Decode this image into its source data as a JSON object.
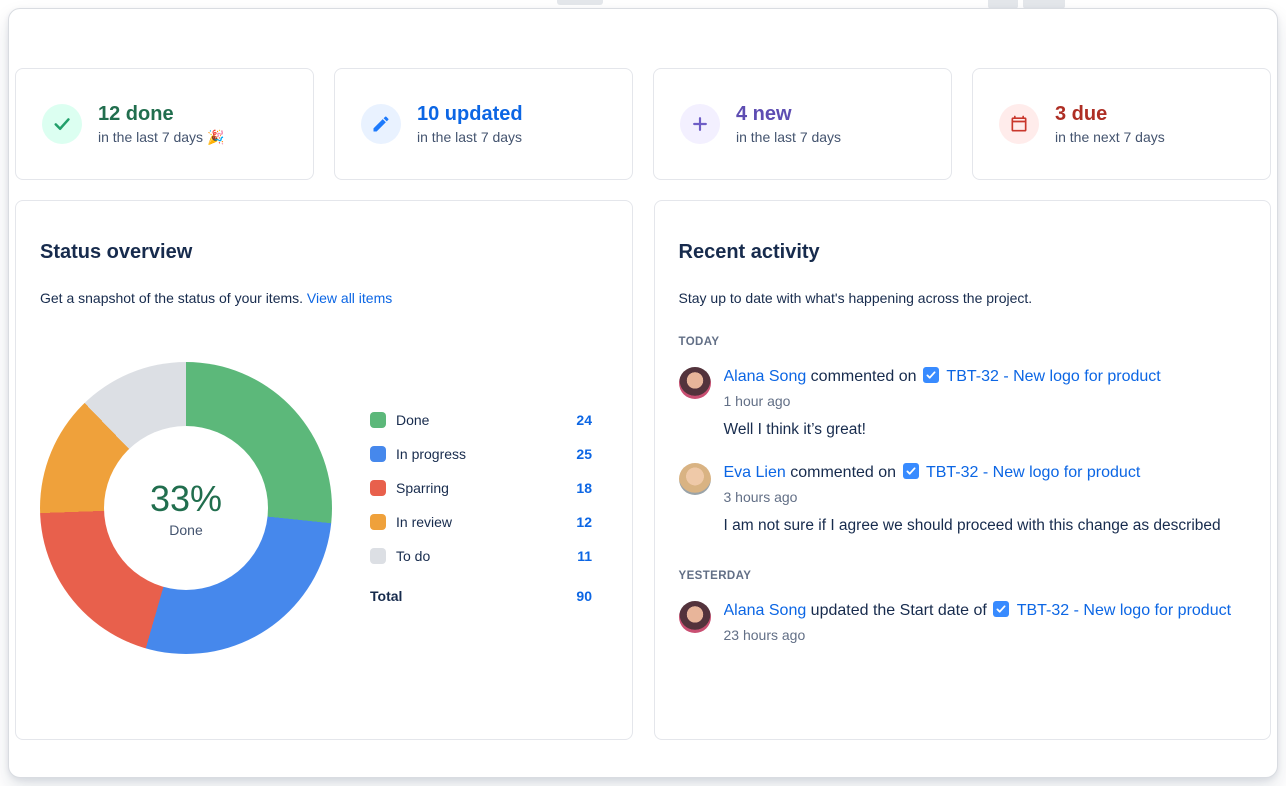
{
  "colors": {
    "link": "#0C66E4",
    "task_icon": "#388BFF",
    "legend_value": "#0C66E4",
    "center_text": "#216E4E"
  },
  "stats": [
    {
      "id": "done",
      "value": "12 done",
      "caption": "in the last 7 days 🎉",
      "icon": "check-icon",
      "value_color": "#216E4E",
      "icon_color": "#22A06B",
      "icon_bg": "#DCFFF1"
    },
    {
      "id": "updated",
      "value": "10 updated",
      "caption": "in the last 7 days",
      "icon": "pencil-icon",
      "value_color": "#0C66E4",
      "icon_color": "#1D7AFC",
      "icon_bg": "#E9F2FF"
    },
    {
      "id": "new",
      "value": "4 new",
      "caption": "in the last 7 days",
      "icon": "plus-icon",
      "value_color": "#5E4DB2",
      "icon_color": "#6E5DC6",
      "icon_bg": "#F3F0FF"
    },
    {
      "id": "due",
      "value": "3 due",
      "caption": "in the next 7 days",
      "icon": "calendar-icon",
      "value_color": "#AE2E24",
      "icon_color": "#C9372C",
      "icon_bg": "#FFECEB"
    }
  ],
  "status_overview": {
    "title": "Status overview",
    "description": "Get a snapshot of the status of your items.",
    "link_label": "View all items",
    "center_value": "33%",
    "center_label": "Done",
    "total_label": "Total",
    "total_value": "90"
  },
  "chart_data": {
    "type": "pie",
    "title": "Status overview",
    "categories": [
      "Done",
      "In progress",
      "Sparring",
      "In review",
      "To do"
    ],
    "values": [
      24,
      25,
      18,
      12,
      11
    ],
    "colors": [
      "#5CB87A",
      "#4688EC",
      "#E8604C",
      "#EFA13B",
      "#DCDFE4"
    ],
    "total": 90,
    "center_text": "33% Done",
    "legend_position": "right"
  },
  "recent_activity": {
    "title": "Recent activity",
    "description": "Stay up to date with what's happening across the project.",
    "groups": [
      {
        "label": "TODAY",
        "items": [
          {
            "user": "Alana Song",
            "avatar": "alana",
            "action": "commented on",
            "item": "TBT-32 - New logo for product",
            "time": "1 hour ago",
            "comment": "Well I think it’s great!"
          },
          {
            "user": "Eva Lien",
            "avatar": "eva",
            "action": "commented on",
            "item": "TBT-32 - New logo for product",
            "time": "3 hours ago",
            "comment": "I am not sure if I agree we should proceed with this change as described"
          }
        ]
      },
      {
        "label": "YESTERDAY",
        "items": [
          {
            "user": "Alana Song",
            "avatar": "alana",
            "action": "updated the Start date of",
            "item": "TBT-32 - New logo for product",
            "time": "23 hours ago",
            "comment": ""
          }
        ]
      }
    ]
  }
}
